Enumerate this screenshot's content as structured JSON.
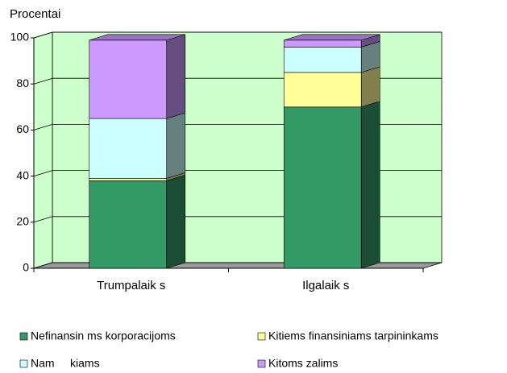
{
  "chart_data": {
    "type": "bar",
    "stacked": true,
    "ylabel": "Procentai",
    "categories": [
      "Trumpalaik s",
      "Ilgalaik s"
    ],
    "series": [
      {
        "name": "Nefinansin ms korporacijoms",
        "color": "#339966",
        "values": [
          38,
          70
        ]
      },
      {
        "name": "Kitiems finansiniams tarpininkams",
        "color": "#ffff99",
        "values": [
          1,
          15
        ]
      },
      {
        "name": "Nam     kiams",
        "color": "#ccffff",
        "values": [
          26,
          11
        ]
      },
      {
        "name": "Kitoms zalims",
        "color": "#cc99ff",
        "values": [
          34,
          3
        ]
      }
    ],
    "ylim": [
      0,
      100
    ],
    "yticks": [
      0,
      20,
      40,
      60,
      80,
      100
    ],
    "grid": true,
    "wall_color": "#ccffcc"
  }
}
